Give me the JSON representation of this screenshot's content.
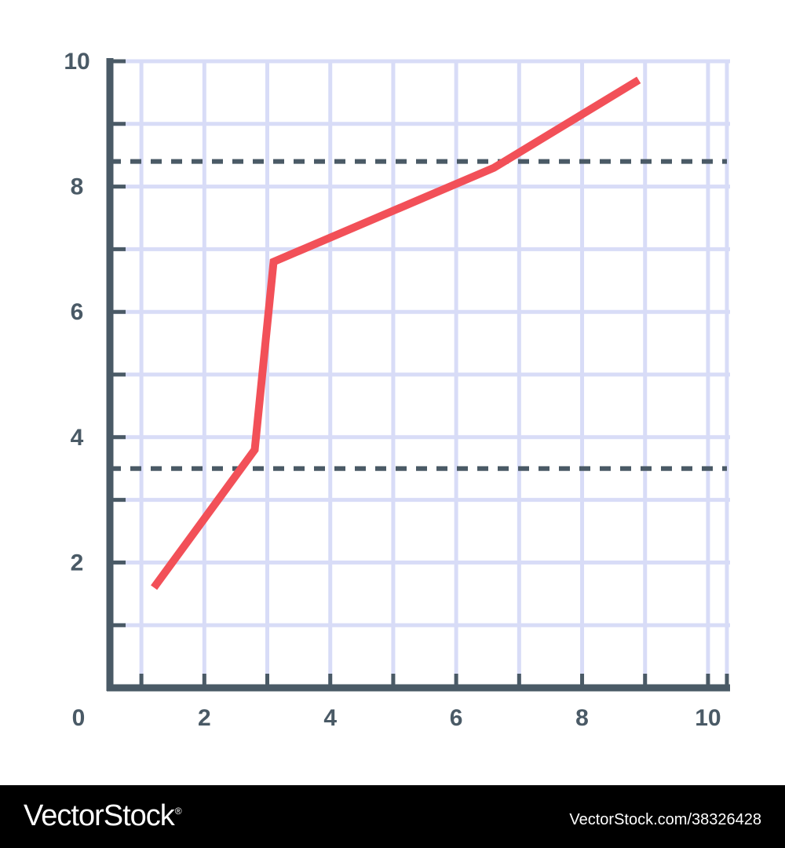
{
  "chart_data": {
    "type": "line",
    "title": "",
    "xlabel": "",
    "ylabel": "",
    "xlim": [
      0.5,
      10.3
    ],
    "ylim": [
      0,
      10
    ],
    "x_ticks": [
      2,
      4,
      6,
      8,
      10
    ],
    "y_ticks": [
      2,
      4,
      6,
      8,
      10
    ],
    "origin_label": "0",
    "grid": true,
    "series": [
      {
        "color": "#f25058",
        "points": [
          [
            1.2,
            1.6
          ],
          [
            2.8,
            3.8
          ],
          [
            3.1,
            6.8
          ],
          [
            6.6,
            8.3
          ],
          [
            8.9,
            9.7
          ]
        ]
      }
    ],
    "reference_lines": [
      {
        "y": 8.4,
        "style": "dashed",
        "color": "#4a5a66"
      },
      {
        "y": 3.5,
        "style": "dashed",
        "color": "#4a5a66"
      }
    ],
    "colors": {
      "axis": "#4a5a66",
      "grid": "#d8dcf7",
      "line": "#f25058",
      "label": "#4a5a66"
    }
  },
  "footer": {
    "logo_text": "VectorStock",
    "logo_mark": "®",
    "image_id": "VectorStock.com/38326428"
  }
}
